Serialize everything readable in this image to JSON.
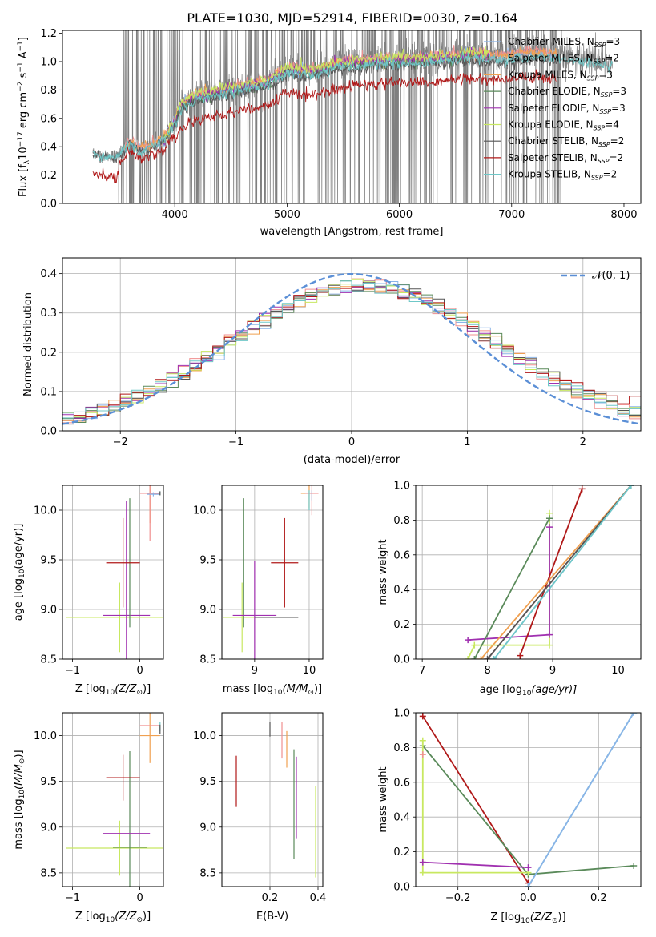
{
  "figure": {
    "title": "PLATE=1030, MJD=52914, FIBERID=0030, z=0.164"
  },
  "colors": {
    "data_gray": "#7f7f7f",
    "grid": "#b0b0b0",
    "normal_curve": "#5b8fd6",
    "chabrier_miles": "#8ab4e8",
    "salpeter_miles": "#f08f8f",
    "kroupa_miles": "#f0a050",
    "chabrier_elodie": "#5a8a5a",
    "salpeter_elodie": "#a030b0",
    "kroupa_elodie": "#c8e860",
    "chabrier_stelib": "#555555",
    "salpeter_stelib": "#b01818",
    "kroupa_stelib": "#6fc8c8"
  },
  "chart_data": [
    {
      "id": "spectrum",
      "type": "line",
      "xlabel": "wavelength [Angstrom, rest frame]",
      "ylabel_parts": [
        "Flux [f",
        "λ",
        "10",
        "−17",
        " erg cm",
        "−2",
        " s",
        "−1",
        " A",
        "−1",
        "]"
      ],
      "xlim": [
        3000,
        8150
      ],
      "ylim": [
        0,
        1.22
      ],
      "xticks": [
        4000,
        5000,
        6000,
        7000,
        8000
      ],
      "yticks": [
        0.0,
        0.2,
        0.4,
        0.6,
        0.8,
        1.0,
        1.2
      ],
      "data_range": [
        3270,
        7900
      ],
      "data_spike_window": [
        3500,
        7450
      ],
      "legend_position": "top-right",
      "legend": [
        {
          "key": "chabrier_miles",
          "label": "Chabrier MILES, N",
          "sub": "SSP",
          "tail": "=3"
        },
        {
          "key": "salpeter_miles",
          "label": "Salpeter MILES, N",
          "sub": "SSP",
          "tail": "=2"
        },
        {
          "key": "kroupa_miles",
          "label": "Kroupa MILES, N",
          "sub": "SSP",
          "tail": "=3"
        },
        {
          "key": "chabrier_elodie",
          "label": "Chabrier ELODIE, N",
          "sub": "SSP",
          "tail": "=3"
        },
        {
          "key": "salpeter_elodie",
          "label": "Salpeter ELODIE, N",
          "sub": "SSP",
          "tail": "=3"
        },
        {
          "key": "kroupa_elodie",
          "label": "Kroupa ELODIE, N",
          "sub": "SSP",
          "tail": "=4"
        },
        {
          "key": "chabrier_stelib",
          "label": "Chabrier STELIB, N",
          "sub": "SSP",
          "tail": "=2"
        },
        {
          "key": "salpeter_stelib",
          "label": "Salpeter STELIB, N",
          "sub": "SSP",
          "tail": "=2"
        },
        {
          "key": "kroupa_stelib",
          "label": "Kroupa STELIB, N",
          "sub": "SSP",
          "tail": "=2"
        }
      ],
      "model_ranges": {
        "chabrier_miles": [
          3540,
          7400
        ],
        "salpeter_miles": [
          3540,
          7400
        ],
        "kroupa_miles": [
          3540,
          7400
        ],
        "chabrier_elodie": [
          3900,
          6800
        ],
        "salpeter_elodie": [
          3900,
          6800
        ],
        "kroupa_elodie": [
          3900,
          6800
        ],
        "chabrier_stelib": [
          3270,
          7400
        ],
        "salpeter_stelib": [
          3270,
          7400
        ],
        "kroupa_stelib": [
          3270,
          7900
        ]
      },
      "continuum": {
        "w": [
          3270,
          3400,
          3500,
          3600,
          3700,
          3800,
          3900,
          4000,
          4050,
          4200,
          4500,
          4800,
          5000,
          5200,
          5500,
          5800,
          6000,
          6300,
          6600,
          6900,
          7200,
          7400,
          7900
        ],
        "f": [
          0.36,
          0.33,
          0.35,
          0.44,
          0.38,
          0.42,
          0.45,
          0.58,
          0.7,
          0.76,
          0.81,
          0.85,
          0.95,
          0.93,
          0.99,
          1.01,
          1.02,
          1.02,
          1.05,
          1.04,
          1.06,
          1.05,
          1.0
        ]
      }
    },
    {
      "id": "residuals",
      "type": "histogram",
      "xlabel": "(data-model)/error",
      "ylabel": "Normed distribution",
      "xlim": [
        -2.5,
        2.5
      ],
      "ylim": [
        0,
        0.44
      ],
      "xticks": [
        -2,
        -1,
        0,
        1,
        2
      ],
      "xtick_labels": [
        "−2",
        "−1",
        "0",
        "1",
        "2"
      ],
      "yticks": [
        0.0,
        0.1,
        0.2,
        0.3,
        0.4
      ],
      "bin_edges_range": [
        -2.5,
        2.5
      ],
      "n_bins": 50,
      "legend_position": "top-right",
      "legend_label": "𝒩(0, 1)",
      "normal": {
        "mu": 0,
        "sigma": 1
      }
    },
    {
      "id": "age_vs_z",
      "type": "scatter",
      "xlabel_parts": [
        "Z [log",
        "10",
        "(Z/Z",
        "⊙",
        ")]"
      ],
      "ylabel_parts": [
        "age  [log",
        "10",
        "(age/yr)]"
      ],
      "xlim": [
        -1.15,
        0.35
      ],
      "ylim": [
        8.5,
        10.25
      ],
      "xticks": [
        -1,
        0
      ],
      "xtick_labels": [
        "−1",
        "0"
      ],
      "yticks": [
        8.5,
        9.0,
        9.5,
        10.0
      ],
      "points": [
        {
          "key": "kroupa_elodie",
          "x": -0.3,
          "y": 8.92,
          "xerr": 0.8,
          "yerr": 0.35
        },
        {
          "key": "salpeter_elodie",
          "x": -0.2,
          "y": 8.94,
          "xerr": 0.35,
          "yerr": 1.15
        },
        {
          "key": "chabrier_elodie",
          "x": -0.15,
          "y": 9.47,
          "xerr": 0.0,
          "yerr": 0.65
        },
        {
          "key": "salpeter_stelib",
          "x": -0.25,
          "y": 9.47,
          "xerr": 0.25,
          "yerr": 0.45
        },
        {
          "key": "kroupa_miles",
          "x": 0.15,
          "y": 10.17,
          "xerr": 0.15,
          "yerr": 0.3
        },
        {
          "key": "salpeter_miles",
          "x": 0.15,
          "y": 10.17,
          "xerr": 0.15,
          "yerr": 0.48
        },
        {
          "key": "chabrier_miles",
          "x": 0.2,
          "y": 10.16,
          "xerr": 0.1,
          "yerr": 0.02
        },
        {
          "key": "kroupa_stelib",
          "x": 0.3,
          "y": 10.17,
          "xerr": 0.0,
          "yerr": 0.02
        },
        {
          "key": "chabrier_stelib",
          "x": 0.3,
          "y": 10.17,
          "xerr": 0.0,
          "yerr": 0.02
        }
      ]
    },
    {
      "id": "age_vs_mass",
      "type": "scatter",
      "xlabel_parts": [
        "mass [log",
        "10",
        "(M/M",
        "⊙",
        ")]"
      ],
      "xlim": [
        8.4,
        10.25
      ],
      "ylim": [
        8.5,
        10.25
      ],
      "xticks": [
        9,
        10
      ],
      "yticks": [
        8.5,
        9.0,
        9.5,
        10.0
      ],
      "points": [
        {
          "key": "kroupa_elodie",
          "x": 8.77,
          "y": 8.92,
          "xerr": 0.35,
          "yerr": 0.35
        },
        {
          "key": "chabrier_elodie",
          "x": 8.8,
          "y": 9.47,
          "xerr": 0.0,
          "yerr": 0.65
        },
        {
          "key": "salpeter_elodie",
          "x": 9.0,
          "y": 8.94,
          "xerr": 0.4,
          "yerr": 0.55
        },
        {
          "key": "chabrier_stelib",
          "x": 9.4,
          "y": 8.92,
          "xerr": 0.4,
          "yerr": 0.0
        },
        {
          "key": "salpeter_stelib",
          "x": 9.55,
          "y": 9.47,
          "xerr": 0.25,
          "yerr": 0.45
        },
        {
          "key": "kroupa_miles",
          "x": 10.0,
          "y": 10.17,
          "xerr": 0.15,
          "yerr": 0.15
        },
        {
          "key": "salpeter_miles",
          "x": 10.05,
          "y": 10.17,
          "xerr": 0.12,
          "yerr": 0.22
        },
        {
          "key": "kroupa_stelib",
          "x": 10.0,
          "y": 10.1,
          "xerr": 0.0,
          "yerr": 0.1
        },
        {
          "key": "chabrier_miles",
          "x": 10.05,
          "y": 10.15,
          "xerr": 0.0,
          "yerr": 0.05
        }
      ]
    },
    {
      "id": "weight_vs_age",
      "type": "line",
      "xlabel_parts": [
        "age  [log",
        "10",
        "(age/yr)]"
      ],
      "ylabel": "mass weight",
      "xlim": [
        6.9,
        10.35
      ],
      "ylim": [
        0,
        1.0
      ],
      "xticks": [
        7,
        8,
        9,
        10
      ],
      "yticks": [
        0.0,
        0.2,
        0.4,
        0.6,
        0.8,
        1.0
      ],
      "series": [
        {
          "key": "kroupa_elodie",
          "x": [
            7.7,
            7.8,
            8.95,
            8.95
          ],
          "y": [
            0.0,
            0.08,
            0.08,
            0.84
          ]
        },
        {
          "key": "salpeter_elodie",
          "x": [
            7.7,
            8.95,
            8.95
          ],
          "y": [
            0.11,
            0.14,
            0.76
          ]
        },
        {
          "key": "chabrier_elodie",
          "x": [
            7.8,
            8.95
          ],
          "y": [
            0.0,
            0.81
          ]
        },
        {
          "key": "salpeter_stelib",
          "x": [
            8.5,
            9.45
          ],
          "y": [
            0.02,
            0.98
          ]
        },
        {
          "key": "kroupa_miles",
          "x": [
            7.9,
            10.2
          ],
          "y": [
            0.0,
            1.0
          ]
        },
        {
          "key": "salpeter_miles",
          "x": [
            8.0,
            10.2
          ],
          "y": [
            0.0,
            1.0
          ]
        },
        {
          "key": "chabrier_miles",
          "x": [
            8.1,
            10.2
          ],
          "y": [
            0.0,
            1.0
          ]
        },
        {
          "key": "chabrier_stelib",
          "x": [
            8.0,
            10.2
          ],
          "y": [
            0.0,
            1.0
          ]
        },
        {
          "key": "kroupa_stelib",
          "x": [
            8.1,
            10.2
          ],
          "y": [
            0.0,
            1.0
          ]
        }
      ]
    },
    {
      "id": "mass_vs_z",
      "type": "scatter",
      "xlabel_parts": [
        "Z [log",
        "10",
        "(Z/Z",
        "⊙",
        ")]"
      ],
      "ylabel_parts": [
        "mass [log",
        "10",
        "(M/M",
        "⊙",
        ")]"
      ],
      "xlim": [
        -1.15,
        0.35
      ],
      "ylim": [
        8.35,
        10.25
      ],
      "xticks": [
        -1,
        0
      ],
      "xtick_labels": [
        "−1",
        "0"
      ],
      "yticks": [
        8.5,
        9.0,
        9.5,
        10.0
      ],
      "points": [
        {
          "key": "kroupa_elodie",
          "x": -0.3,
          "y": 8.77,
          "xerr": 0.8,
          "yerr": 0.3
        },
        {
          "key": "chabrier_elodie",
          "x": -0.15,
          "y": 8.78,
          "xerr": 0.25,
          "yerr": 1.05
        },
        {
          "key": "salpeter_elodie",
          "x": -0.2,
          "y": 8.93,
          "xerr": 0.35,
          "yerr": 0.0
        },
        {
          "key": "salpeter_stelib",
          "x": -0.25,
          "y": 9.54,
          "xerr": 0.25,
          "yerr": 0.25
        },
        {
          "key": "kroupa_miles",
          "x": 0.15,
          "y": 10.0,
          "xerr": 0.15,
          "yerr": 0.3
        },
        {
          "key": "salpeter_miles",
          "x": 0.15,
          "y": 10.11,
          "xerr": 0.15,
          "yerr": 0.0
        },
        {
          "key": "kroupa_stelib",
          "x": 0.3,
          "y": 10.1,
          "xerr": 0.0,
          "yerr": 0.05
        },
        {
          "key": "chabrier_stelib",
          "x": 0.3,
          "y": 10.07,
          "xerr": 0.0,
          "yerr": 0.05
        }
      ]
    },
    {
      "id": "mass_vs_ebv",
      "type": "scatter",
      "xlabel": "E(B-V)",
      "xlim": [
        0.0,
        0.42
      ],
      "ylim": [
        8.35,
        10.25
      ],
      "xticks": [
        0.2,
        0.4
      ],
      "yticks": [
        8.5,
        9.0,
        9.5,
        10.0
      ],
      "points": [
        {
          "key": "salpeter_stelib",
          "x": 0.06,
          "y": 9.5,
          "xerr": 0.0,
          "yerr": 0.28
        },
        {
          "key": "chabrier_stelib",
          "x": 0.2,
          "y": 10.07,
          "xerr": 0.0,
          "yerr": 0.08
        },
        {
          "key": "salpeter_miles",
          "x": 0.25,
          "y": 9.95,
          "xerr": 0.0,
          "yerr": 0.2
        },
        {
          "key": "kroupa_miles",
          "x": 0.27,
          "y": 9.85,
          "xerr": 0.0,
          "yerr": 0.2
        },
        {
          "key": "chabrier_elodie",
          "x": 0.3,
          "y": 9.25,
          "xerr": 0.0,
          "yerr": 0.6
        },
        {
          "key": "salpeter_elodie",
          "x": 0.31,
          "y": 9.32,
          "xerr": 0.0,
          "yerr": 0.45
        },
        {
          "key": "kroupa_elodie",
          "x": 0.39,
          "y": 8.95,
          "xerr": 0.0,
          "yerr": 0.5
        }
      ]
    },
    {
      "id": "weight_vs_z",
      "type": "line",
      "xlabel_parts": [
        "Z [log",
        "10",
        "(Z/Z",
        "⊙",
        ")]"
      ],
      "ylabel": "mass weight",
      "xlim": [
        -0.32,
        0.32
      ],
      "ylim": [
        0,
        1.0
      ],
      "xticks": [
        -0.2,
        0.0,
        0.2
      ],
      "xtick_labels": [
        "−0.2",
        "0.0",
        "0.2"
      ],
      "yticks": [
        0.0,
        0.2,
        0.4,
        0.6,
        0.8,
        1.0
      ],
      "series": [
        {
          "key": "salpeter_stelib",
          "x": [
            -0.3,
            0.0
          ],
          "y": [
            0.98,
            0.02
          ]
        },
        {
          "key": "chabrier_elodie",
          "x": [
            -0.3,
            0.0,
            0.3
          ],
          "y": [
            0.81,
            0.07,
            0.12
          ]
        },
        {
          "key": "kroupa_elodie",
          "x": [
            -0.3,
            -0.3,
            0.0
          ],
          "y": [
            0.84,
            0.08,
            0.08
          ]
        },
        {
          "key": "salpeter_elodie",
          "x": [
            -0.3,
            0.0
          ],
          "y": [
            0.14,
            0.11
          ]
        },
        {
          "key": "kroupa_stelib",
          "x": [
            0.0,
            0.3
          ],
          "y": [
            0.0,
            1.0
          ]
        },
        {
          "key": "chabrier_miles",
          "x": [
            0.0,
            0.3
          ],
          "y": [
            0.0,
            1.0
          ]
        },
        {
          "key": "salpeter_miles",
          "x": [
            -0.3
          ],
          "y": [
            0.76
          ]
        }
      ]
    }
  ]
}
